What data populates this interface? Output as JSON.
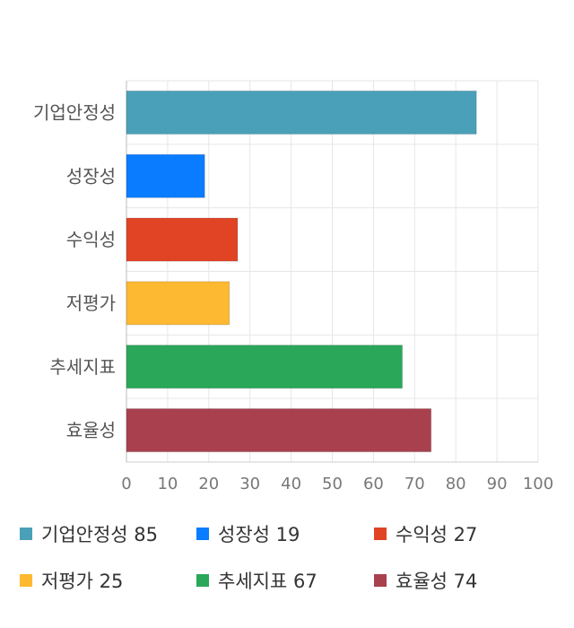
{
  "chart_data": {
    "type": "bar",
    "orientation": "horizontal",
    "categories": [
      "기업안정성",
      "성장성",
      "수익성",
      "저평가",
      "추세지표",
      "효율성"
    ],
    "values": [
      85,
      19,
      27,
      25,
      67,
      74
    ],
    "colors": [
      "#4aa0b8",
      "#0a7cff",
      "#e04424",
      "#fdb931",
      "#2ba75a",
      "#a8404e"
    ],
    "xlim": [
      0,
      100
    ],
    "xticks": [
      "0",
      "10",
      "20",
      "30",
      "40",
      "50",
      "60",
      "70",
      "80",
      "90",
      "100"
    ],
    "grid": true,
    "legend_position": "bottom",
    "title": "",
    "xlabel": "",
    "ylabel": ""
  },
  "legend": [
    {
      "label": "기업안정성",
      "value": "85"
    },
    {
      "label": "성장성",
      "value": "19"
    },
    {
      "label": "수익성",
      "value": "27"
    },
    {
      "label": "저평가",
      "value": "25"
    },
    {
      "label": "추세지표",
      "value": "67"
    },
    {
      "label": "효율성",
      "value": "74"
    }
  ]
}
